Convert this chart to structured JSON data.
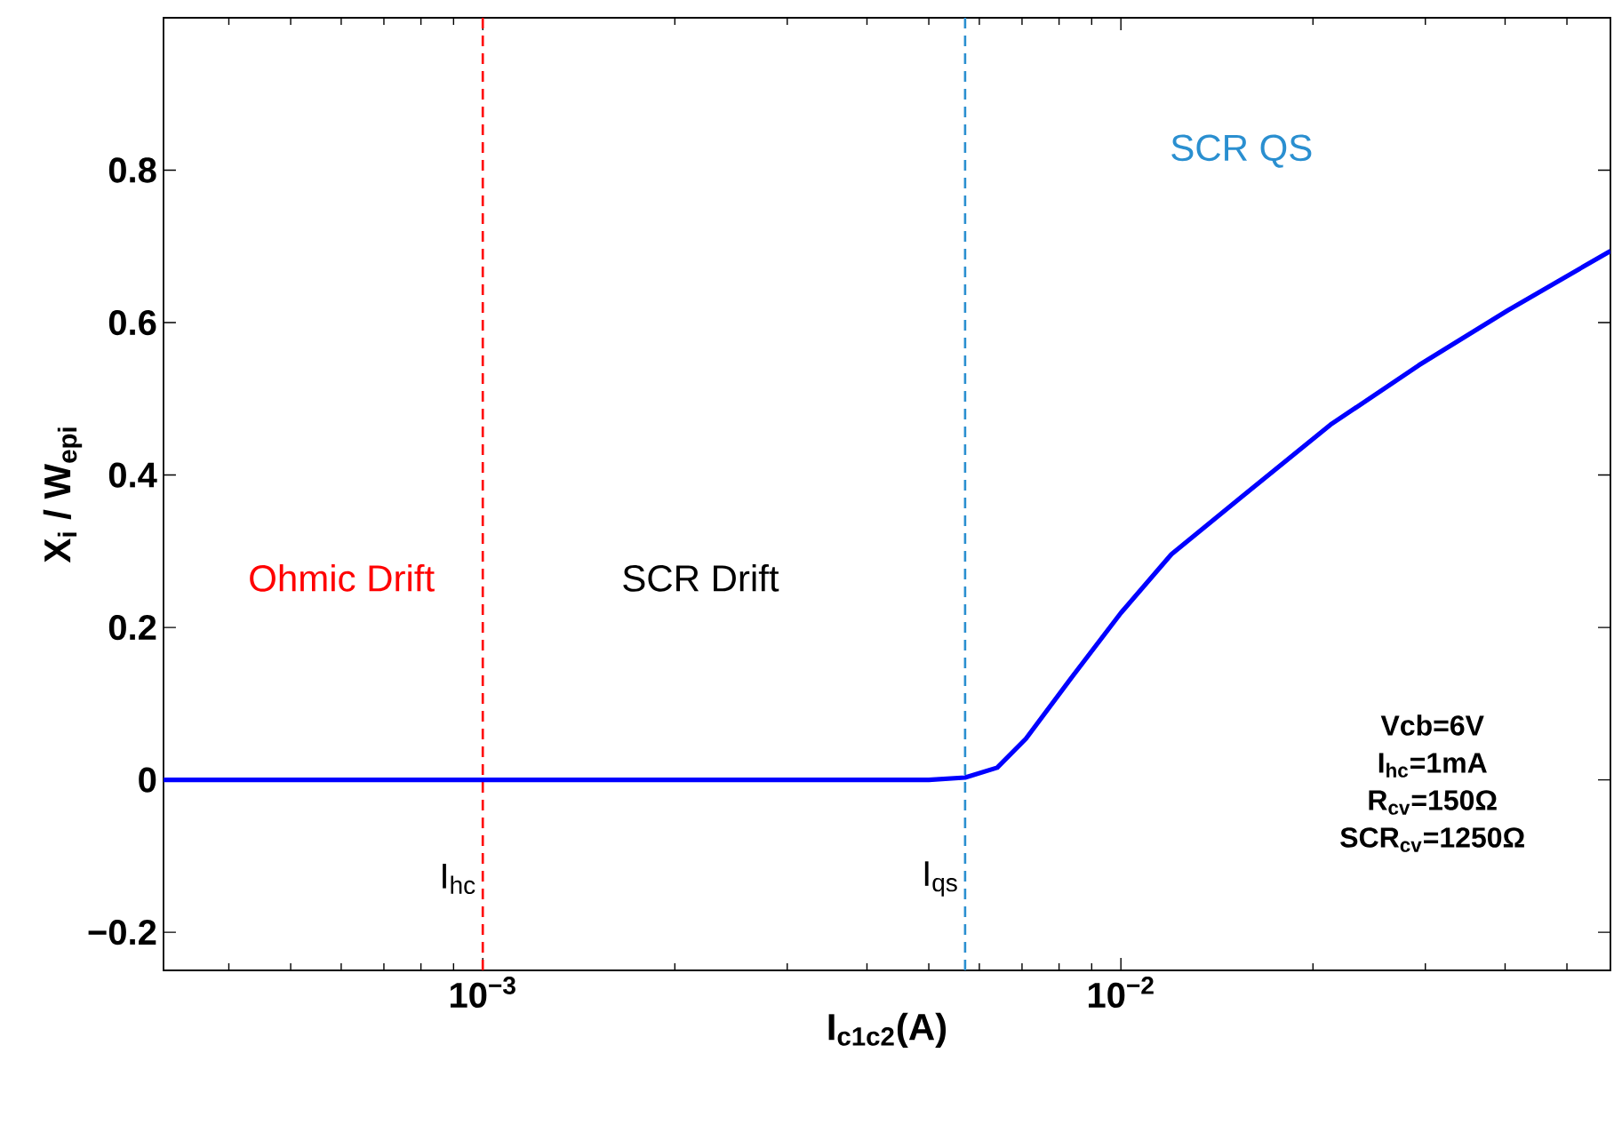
{
  "chart_data": {
    "type": "line",
    "xlabel": "I$_{c1c2}$(A)",
    "ylabel": "X$_{i}$ / W$_{epi}$",
    "log": "x",
    "xlim": [
      0.000316,
      0.0585
    ],
    "ylim": [
      -0.25,
      1
    ],
    "xticks": [
      {
        "value": 0.001,
        "label": "10$^{−3}$"
      },
      {
        "value": 0.01,
        "label": "10$^{−2}$"
      }
    ],
    "yticks": [
      {
        "value": -0.2,
        "label": "−0.2"
      },
      0,
      0.2,
      0.4,
      0.6,
      0.8
    ],
    "grid": false,
    "marker": "none",
    "line_style": "solid",
    "x": [
      0.000316,
      0.001,
      0.003,
      0.005,
      0.0057,
      0.0064,
      0.0071,
      0.0084,
      0.01,
      0.012,
      0.0155,
      0.0213,
      0.0293,
      0.0404,
      0.0585
    ],
    "series": [
      {
        "color": "#0000ff",
        "values": [
          0,
          0,
          0,
          0,
          0.003,
          0.016,
          0.054,
          0.136,
          0.219,
          0.296,
          0.372,
          0.466,
          0.544,
          0.616,
          0.694
        ]
      }
    ],
    "ref_lines": [
      {
        "axis": "x",
        "value": 0.001,
        "label": "I$_{hc}$",
        "color": "#ff0000",
        "line_style": "dashed"
      },
      {
        "axis": "x",
        "value": 0.0057,
        "label": "I$_{qs}$",
        "color": "#2a8fd0",
        "line_style": "dashed"
      }
    ],
    "annotations": [
      "Ohmic Drift",
      "SCR Drift",
      "SCR QS",
      "Vcb=6V",
      "I$_{hc}$=1mA",
      "R$_{cv}$=150Ω",
      "SCR$_{cv}$=1250Ω"
    ]
  }
}
